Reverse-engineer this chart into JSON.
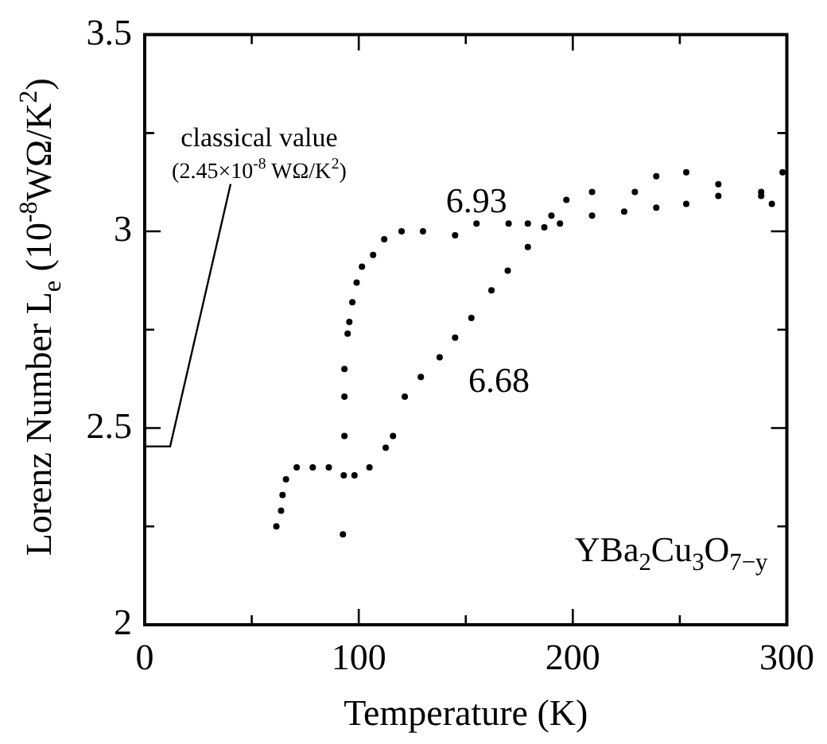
{
  "chart_data": {
    "type": "scatter",
    "xlabel": "Temperature (K)",
    "ylabel": "Lorenz Number L$_{e}$ (10$^{-8}$WΩ/K$^{2}$)",
    "xlim": [
      0,
      300
    ],
    "xticks": [
      0,
      {
        "value": 50,
        "label": null
      },
      100,
      {
        "value": 150,
        "label": null
      },
      200,
      {
        "value": 250,
        "label": null
      },
      300
    ],
    "ylim": [
      2,
      3.5
    ],
    "yticks": [
      2,
      {
        "value": 2.25,
        "label": null
      },
      2.5,
      {
        "value": 2.75,
        "label": null
      },
      3,
      {
        "value": 3.25,
        "label": null
      },
      3.5
    ],
    "grid": false,
    "legend": false,
    "marker": "circle",
    "series": [
      {
        "name": "6.93",
        "color": "#000000",
        "x": [
          92.6,
          93.3,
          93.3,
          93.3,
          94.8,
          95.6,
          97,
          99,
          101.5,
          106.7,
          111.9,
          120,
          130,
          145,
          155,
          170,
          179,
          190,
          194,
          209,
          224,
          239,
          253,
          268,
          288,
          293
        ],
        "values": [
          2.23,
          2.48,
          2.58,
          2.65,
          2.74,
          2.77,
          2.82,
          2.87,
          2.91,
          2.94,
          2.98,
          3.0,
          3.0,
          2.99,
          3.02,
          3.02,
          3.02,
          3.04,
          3.02,
          3.04,
          3.05,
          3.06,
          3.07,
          3.09,
          3.09,
          3.07
        ]
      },
      {
        "name": "6.68",
        "color": "#000000",
        "x": [
          61.5,
          63.7,
          64.4,
          66,
          71,
          78.5,
          86,
          93,
          98,
          105,
          112.6,
          116,
          121.5,
          129,
          137.8,
          145,
          152.6,
          162,
          169.6,
          179,
          186.7,
          197,
          209,
          229,
          239,
          253,
          268,
          288,
          298
        ],
        "values": [
          2.25,
          2.29,
          2.33,
          2.37,
          2.4,
          2.4,
          2.4,
          2.38,
          2.38,
          2.4,
          2.45,
          2.48,
          2.58,
          2.63,
          2.68,
          2.73,
          2.78,
          2.85,
          2.9,
          2.96,
          3.01,
          3.08,
          3.1,
          3.1,
          3.14,
          3.15,
          3.12,
          3.1,
          3.15
        ]
      }
    ],
    "annotations": [
      "classical value",
      "(2.45×10$^{-8}$ WΩ/K$^{2}$)",
      "YBa$_{2}$Cu$_{3}$O$_{7−y}$"
    ]
  }
}
